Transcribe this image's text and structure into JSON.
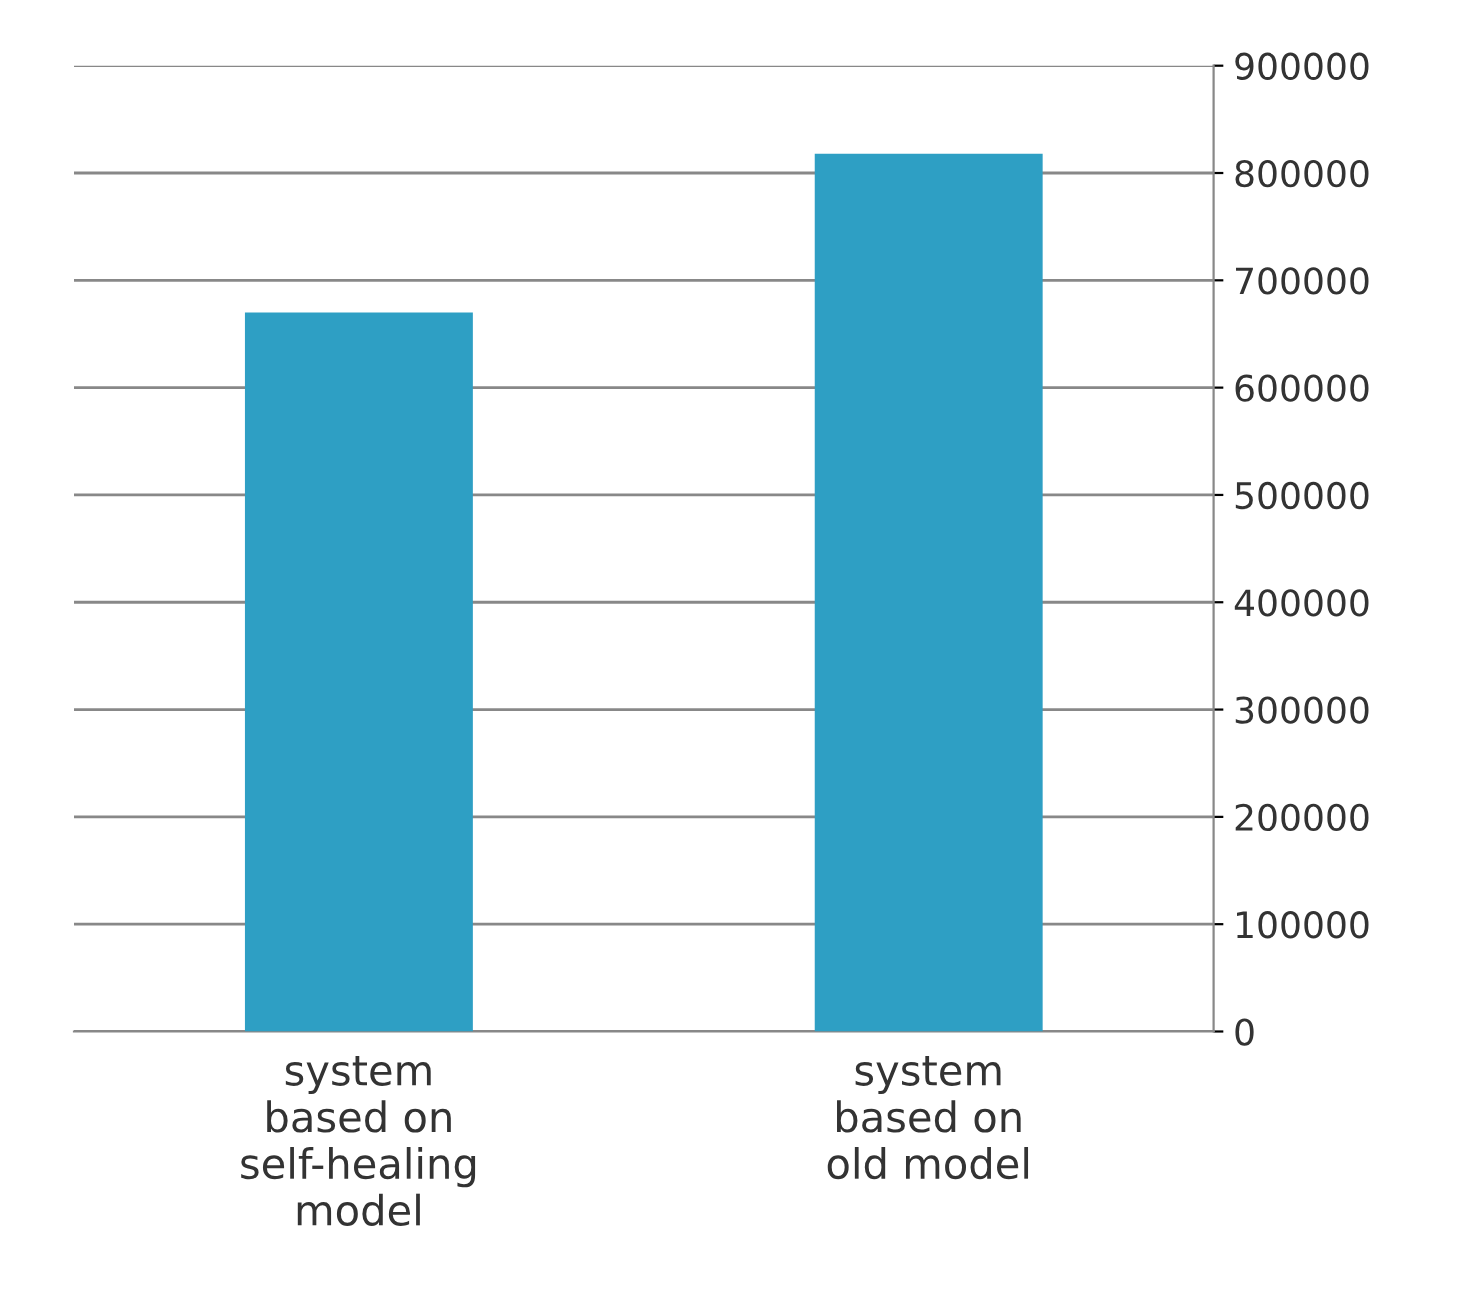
{
  "chart_data": {
    "type": "bar",
    "categories": [
      "system\nbased on\nself-healing\nmodel",
      "system\nbased on\nold model"
    ],
    "values": [
      670000,
      818000
    ],
    "color": "#2e9fc4",
    "ylim": [
      0,
      900000
    ],
    "yticks": [
      0,
      100000,
      200000,
      300000,
      400000,
      500000,
      600000,
      700000,
      800000,
      900000
    ],
    "grid": "y"
  }
}
